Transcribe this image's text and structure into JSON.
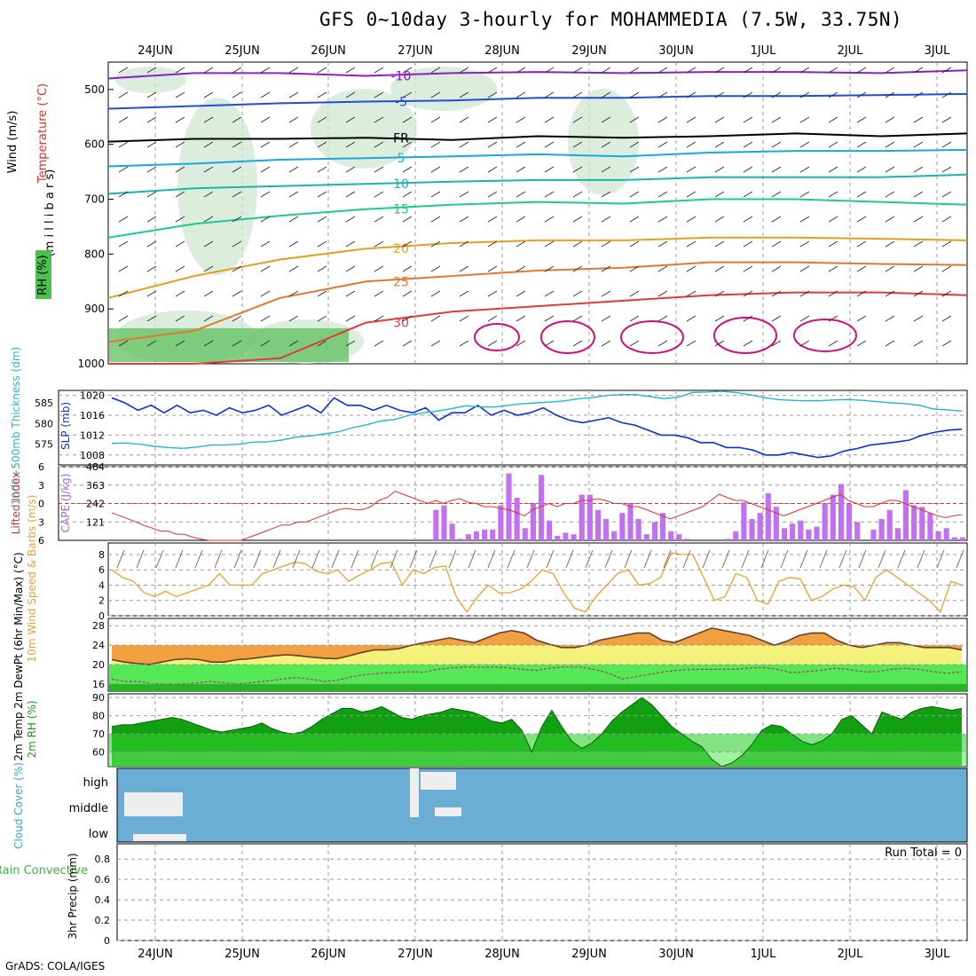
{
  "title": "GFS 0~10day 3-hourly for MOHAMMEDIA (7.5W, 33.75N)",
  "credit": "GrADS: COLA/IGES",
  "chart_data": [
    {
      "id": "upper",
      "type": "heatmap",
      "x_dates": [
        "24JUN",
        "25JUN",
        "26JUN",
        "27JUN",
        "28JUN",
        "29JUN",
        "30JUN",
        "1JUL",
        "2JUL",
        "3JUL"
      ],
      "ylabel": "(millibars)",
      "side_labels": {
        "rh": "RH (%)",
        "temp": "Temperature (°C)",
        "wind": "Wind (m/s)"
      },
      "y_ticks": [
        500,
        600,
        700,
        800,
        900,
        1000
      ],
      "contours": [
        {
          "label": "-10",
          "color": "#8a1fc8",
          "level_mb": [
            480,
            470,
            470,
            475,
            470,
            468,
            470,
            468,
            468,
            470,
            465
          ]
        },
        {
          "label": "-5",
          "color": "#1e4fd8",
          "level_mb": [
            535,
            530,
            525,
            522,
            520,
            515,
            515,
            512,
            512,
            510,
            508
          ]
        },
        {
          "label": "FR",
          "color": "#000000",
          "level_mb": [
            595,
            590,
            590,
            588,
            592,
            585,
            588,
            585,
            580,
            585,
            580
          ]
        },
        {
          "label": "5",
          "color": "#19a8d8",
          "level_mb": [
            640,
            635,
            628,
            625,
            622,
            618,
            622,
            615,
            612,
            612,
            610
          ]
        },
        {
          "label": "10",
          "color": "#1ab4a8",
          "level_mb": [
            690,
            680,
            676,
            672,
            668,
            665,
            665,
            660,
            660,
            660,
            655
          ]
        },
        {
          "label": "15",
          "color": "#1ec896",
          "level_mb": [
            770,
            745,
            730,
            718,
            710,
            705,
            708,
            700,
            700,
            705,
            710
          ]
        },
        {
          "label": "20",
          "color": "#e0a020",
          "level_mb": [
            880,
            840,
            810,
            790,
            780,
            775,
            775,
            770,
            770,
            772,
            775
          ]
        },
        {
          "label": "25",
          "color": "#e07830",
          "level_mb": [
            960,
            940,
            880,
            850,
            840,
            830,
            825,
            815,
            815,
            818,
            820
          ]
        },
        {
          "label": "30",
          "color": "#e03a3a",
          "level_mb": [
            1000,
            1000,
            990,
            925,
            905,
            895,
            885,
            875,
            870,
            870,
            875
          ]
        }
      ]
    },
    {
      "id": "slp",
      "type": "line",
      "ylabel_left": "1000~500mb Thickness (dm)",
      "ylabel_right": "SLP (mb)",
      "left_ticks": [
        575,
        580,
        585
      ],
      "right_ticks": [
        1008,
        1012,
        1016,
        1020
      ],
      "series": [
        {
          "name": "SLP",
          "color": "#1030d0",
          "values": [
            1019.5,
            1018.5,
            1017,
            1018,
            1016.5,
            1018,
            1016.5,
            1017,
            1016,
            1017.5,
            1016.5,
            1017,
            1018,
            1016,
            1017,
            1018,
            1016.5,
            1019.5,
            1018,
            1018,
            1017,
            1018,
            1017,
            1016.5,
            1017.5,
            1015,
            1016.5,
            1016.5,
            1018,
            1016,
            1017,
            1016,
            1016.5,
            1017.5,
            1016,
            1015,
            1014.5,
            1015,
            1015.5,
            1014.5,
            1014,
            1013,
            1012,
            1012,
            1011.5,
            1010.5,
            1010.5,
            1009.5,
            1009.5,
            1009,
            1008,
            1008,
            1008.5,
            1008,
            1007.5,
            1007.8,
            1008.8,
            1009.3,
            1010,
            1010.3,
            1010.6,
            1011,
            1012,
            1012.6,
            1013,
            1013.2
          ]
        },
        {
          "name": "Thickness",
          "color": "#20b8c8",
          "values": [
            575.2,
            575.3,
            575,
            574.5,
            574.2,
            574,
            574.3,
            574.8,
            574.8,
            575,
            575.5,
            575.6,
            576,
            576.7,
            577,
            577.5,
            578,
            579,
            579.7,
            580.6,
            581,
            582,
            582.6,
            583,
            583.6,
            584.3,
            584,
            584,
            584.4,
            584.8,
            585,
            585.2,
            585.5,
            586,
            586.3,
            586.8,
            587,
            587,
            586.5,
            586,
            586.4,
            587.5,
            587.6,
            587.8,
            587.5,
            587,
            586.3,
            585.8,
            585.6,
            585.5,
            585.5,
            585.7,
            585.8,
            585.6,
            585.3,
            585,
            584.8,
            584.4,
            583.5,
            583.3,
            583
          ]
        }
      ]
    },
    {
      "id": "cape",
      "type": "bar",
      "ylabel_left": "Lifted Index",
      "ylabel_right": "CAPE (J/kg)",
      "left_ticks": [
        -6,
        -3,
        0,
        3,
        6
      ],
      "right_ticks": [
        121,
        242,
        363,
        484
      ],
      "bar_color": "#c070f0",
      "cape_values": [
        0,
        0,
        0,
        0,
        0,
        0,
        0,
        0,
        0,
        0,
        0,
        0,
        0,
        0,
        0,
        0,
        0,
        0,
        0,
        0,
        0,
        0,
        0,
        0,
        0,
        0,
        0,
        0,
        0,
        0,
        0,
        0,
        0,
        0,
        0,
        0,
        0,
        0,
        0,
        0,
        200,
        230,
        110,
        10,
        40,
        60,
        70,
        70,
        230,
        440,
        280,
        80,
        240,
        430,
        130,
        30,
        50,
        40,
        300,
        300,
        200,
        140,
        60,
        180,
        240,
        140,
        40,
        120,
        180,
        60,
        40,
        10,
        0,
        0,
        0,
        0,
        10,
        60,
        250,
        140,
        180,
        310,
        220,
        80,
        110,
        130,
        70,
        90,
        240,
        300,
        370,
        240,
        120,
        0,
        70,
        140,
        200,
        80,
        330,
        230,
        220,
        180,
        60,
        80,
        20,
        20
      ],
      "lifted_index": [
        1.5,
        2,
        2.5,
        3,
        3.6,
        4,
        4.5,
        4.5,
        5,
        5,
        5.5,
        5.8,
        6,
        6,
        6,
        6,
        6,
        5.5,
        5,
        4.5,
        4,
        3.5,
        3.5,
        3,
        3,
        2.5,
        2,
        1.5,
        1,
        0.8,
        1,
        1,
        0.5,
        -0.5,
        -1,
        -2,
        -1.5,
        -1,
        -0.5,
        0,
        -0.5,
        0,
        -0.5,
        -0.8,
        -0.2,
        0,
        0.5,
        0.5,
        0.8,
        1,
        1.5,
        2,
        1,
        0.5,
        0,
        0.5,
        0,
        0,
        -0.5,
        -0.5,
        -0.8,
        -0.5,
        0,
        0,
        0.5,
        0.5,
        1,
        1.5,
        2,
        2.5,
        2,
        1.5,
        1,
        0.5,
        -0.5,
        -1.5,
        -1,
        -0.5,
        -0.5,
        0,
        0.5,
        1,
        1.5,
        2,
        1.5,
        1,
        0.5,
        0,
        -0.5,
        -1,
        -1.5,
        -0.5,
        0,
        0.5,
        0.5,
        0,
        -0.5,
        -0.5,
        0,
        0.5,
        1,
        1.5,
        2,
        2.3,
        2,
        1.8
      ]
    },
    {
      "id": "wind10",
      "type": "line",
      "ylabel": "10m Wind Speed & Barbs (m/s)",
      "ticks": [
        0,
        2,
        4,
        6,
        8
      ],
      "series": [
        {
          "name": "10m wind",
          "color": "#e8a030",
          "values": [
            6,
            5,
            4.5,
            3,
            2.5,
            3.2,
            2.5,
            3,
            3.5,
            4,
            5.5,
            4,
            4,
            4,
            5.5,
            6,
            6.5,
            7,
            6.8,
            5.8,
            5.5,
            6,
            4.5,
            5.3,
            6,
            6.8,
            7,
            4,
            6,
            5.5,
            6.3,
            6.5,
            2.5,
            0.5,
            2.5,
            4,
            3,
            3,
            3.5,
            4.5,
            6,
            5.5,
            3,
            1,
            0.5,
            2.5,
            4,
            5.5,
            6,
            4,
            4.2,
            5,
            8.2,
            8,
            8,
            5,
            2,
            2.5,
            5.5,
            5,
            2,
            1.5,
            4.5,
            5,
            4.8,
            2,
            2.5,
            3.5,
            4,
            3.8,
            2,
            5,
            6,
            5,
            4,
            3,
            2,
            0.5,
            4.5,
            4
          ]
        }
      ]
    },
    {
      "id": "temp2m",
      "type": "area",
      "ylabel": "2m Temp 2m DewPt (6hr Min/Max) (°C)",
      "ticks": [
        16,
        20,
        24,
        28
      ],
      "series": [
        {
          "name": "2m Temp",
          "color": "#604030",
          "values": [
            21,
            20.5,
            20.2,
            20,
            20.5,
            21,
            21.2,
            21,
            20.5,
            20.5,
            21,
            21.2,
            21.5,
            21.8,
            22,
            21.8,
            21.5,
            21.3,
            21.2,
            21.8,
            22.5,
            23,
            23,
            23.3,
            24,
            24.5,
            25,
            25.5,
            25,
            24.5,
            25.5,
            26.5,
            27,
            26.5,
            25,
            24.2,
            23.5,
            23.5,
            24,
            25,
            25.5,
            26,
            26.5,
            26.5,
            25,
            24.5,
            25.5,
            26.5,
            27.5,
            27,
            26.5,
            26,
            25,
            24,
            24.8,
            26,
            26.5,
            26.5,
            25,
            24,
            23.5,
            24,
            24.5,
            24.5,
            24,
            23.5,
            23.5,
            23.5,
            23
          ]
        },
        {
          "name": "2m DewPt",
          "color": "#a04060",
          "values": [
            17,
            16.5,
            16.5,
            16,
            16,
            16,
            16.2,
            16.5,
            16.2,
            16,
            16.3,
            16.6,
            17,
            17.3,
            17,
            16.5,
            16.8,
            17.5,
            18,
            18.2,
            18.3,
            18.5,
            18.4,
            19,
            19.3,
            19.5,
            19.4,
            19.5,
            19.3,
            19,
            18.8,
            19.3,
            19.5,
            19.5,
            19,
            18.3,
            17,
            17.5,
            18,
            18.5,
            18.8,
            19,
            19,
            19,
            19,
            19.3,
            19.4,
            19,
            18.3,
            18.5,
            18.8,
            19.2,
            19,
            18.5,
            18.5,
            19,
            19.2,
            19,
            18.5,
            18.2,
            18.5
          ]
        }
      ]
    },
    {
      "id": "rh2m",
      "type": "area",
      "ylabel": "2m RH (%)",
      "ticks": [
        60,
        70,
        80,
        90
      ],
      "series": [
        {
          "name": "2m RH",
          "color": "#108010",
          "values": [
            74,
            75,
            75,
            76,
            77,
            78,
            79,
            78,
            76,
            74,
            72,
            71,
            72,
            73,
            74,
            76,
            73,
            71,
            70,
            71,
            74,
            78,
            81,
            84,
            84,
            82,
            83,
            85,
            82,
            79,
            78,
            80,
            81,
            82,
            84,
            83,
            82,
            80,
            77,
            76,
            78,
            72,
            60,
            74,
            83,
            74,
            66,
            62,
            65,
            70,
            77,
            82,
            86,
            90,
            86,
            80,
            74,
            70,
            66,
            63,
            56,
            52,
            54,
            58,
            64,
            72,
            75,
            74,
            70,
            66,
            64,
            66,
            70,
            78,
            80,
            75,
            70,
            82,
            80,
            78,
            82,
            84,
            85,
            84,
            83,
            84
          ]
        }
      ]
    },
    {
      "id": "cloud",
      "type": "bar",
      "ylabel": "Cloud Cover (%)",
      "levels": [
        "high",
        "middle",
        "low"
      ]
    },
    {
      "id": "precip",
      "type": "bar",
      "ylabel_left": "Total / Rain Convective",
      "ylabel": "3hr Precip (mm)",
      "ticks": [
        0,
        0.2,
        0.4,
        0.6,
        0.8
      ],
      "run_total": "Run Total = 0",
      "values": []
    }
  ]
}
